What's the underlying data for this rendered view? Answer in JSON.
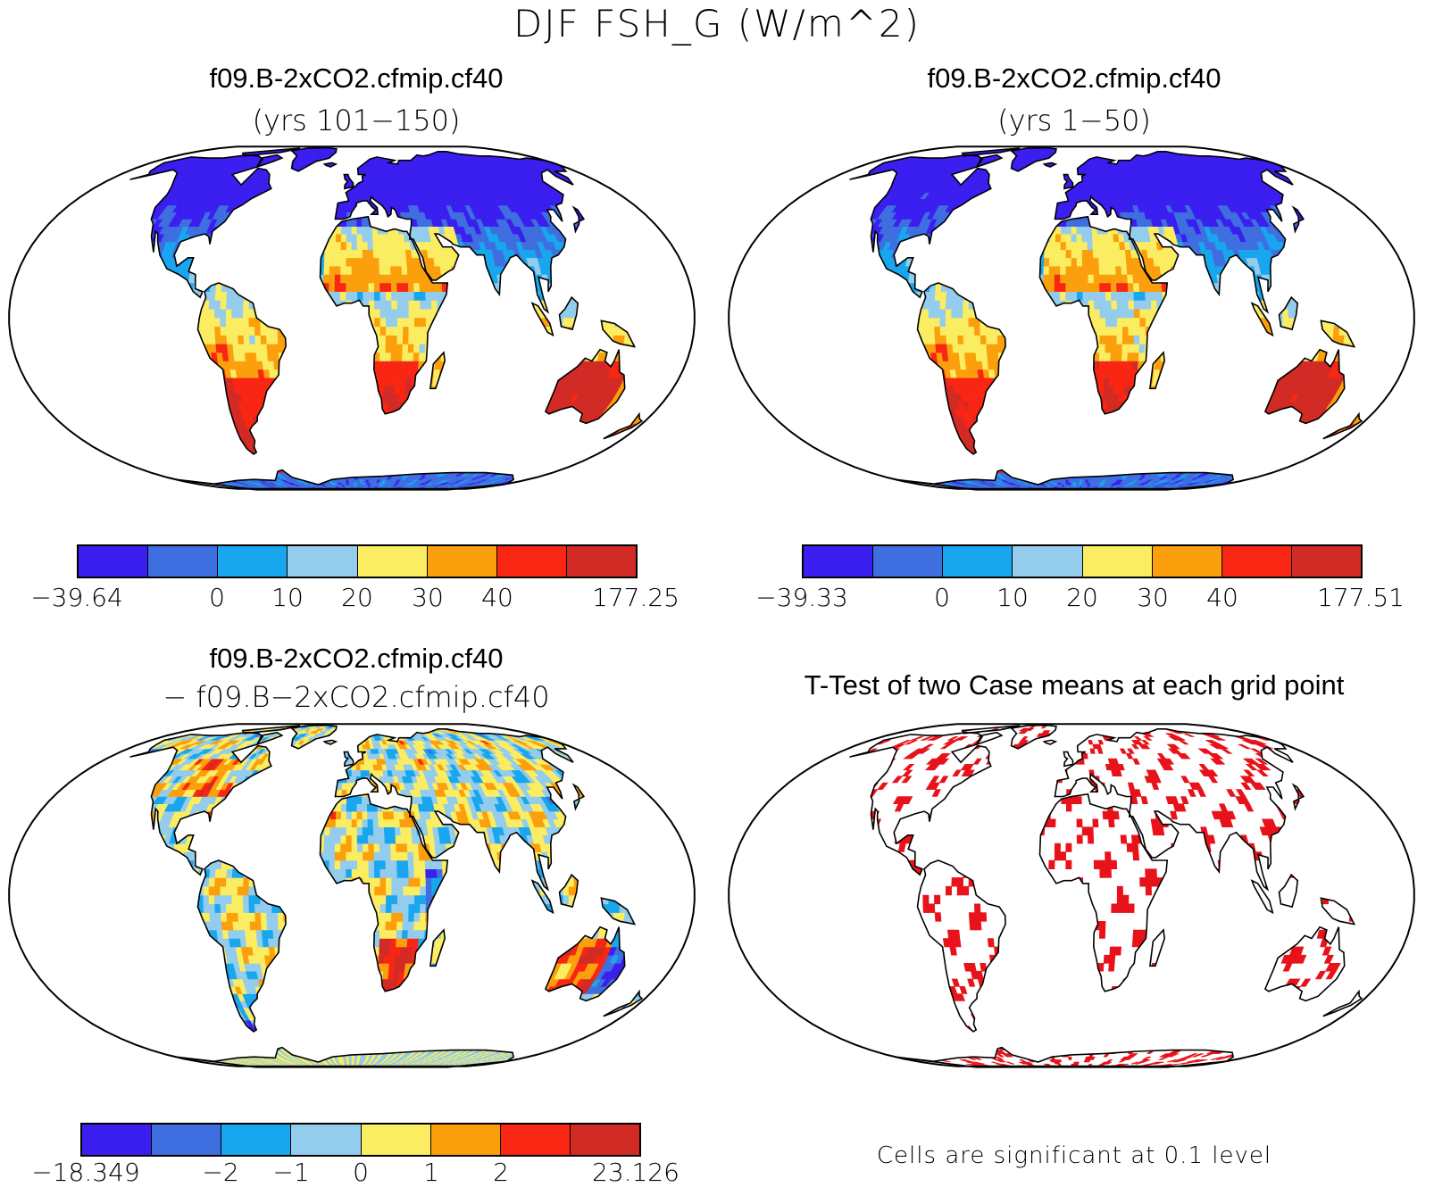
{
  "title": "DJF FSH_G (W/m^2)",
  "palettes": {
    "main": [
      "#3b1ff0",
      "#3f6ee0",
      "#18a6ee",
      "#93ccec",
      "#fbed62",
      "#fb9f0c",
      "#f82612",
      "#d22a25"
    ],
    "diff": [
      "#3b1ff0",
      "#3f6ee0",
      "#18a6ee",
      "#93ccec",
      "#fbed62",
      "#fb9f0c",
      "#f82612",
      "#d22a25"
    ],
    "sig": "#e8131a"
  },
  "panels": {
    "top_left": {
      "title": "f09.B-2xCO2.cfmip.cf40",
      "subtitle": "(yrs 101−150)",
      "colorbar": {
        "min_label": "−39.64",
        "ticks": [
          "0",
          "10",
          "20",
          "30",
          "40"
        ],
        "max_label": "177.25"
      }
    },
    "top_right": {
      "title": "f09.B-2xCO2.cfmip.cf40",
      "subtitle": "(yrs 1−50)",
      "colorbar": {
        "min_label": "−39.33",
        "ticks": [
          "0",
          "10",
          "20",
          "30",
          "40"
        ],
        "max_label": "177.51"
      }
    },
    "bottom_left": {
      "title": "f09.B-2xCO2.cfmip.cf40",
      "subtitle": "− f09.B−2xCO2.cfmip.cf40",
      "colorbar": {
        "min_label": "−18.349",
        "ticks": [
          "−2",
          "−1",
          "0",
          "1",
          "2"
        ],
        "max_label": "23.126"
      }
    },
    "bottom_right": {
      "title": "T-Test of two Case means at each grid point",
      "note": "Cells are significant at 0.1 level"
    }
  }
}
